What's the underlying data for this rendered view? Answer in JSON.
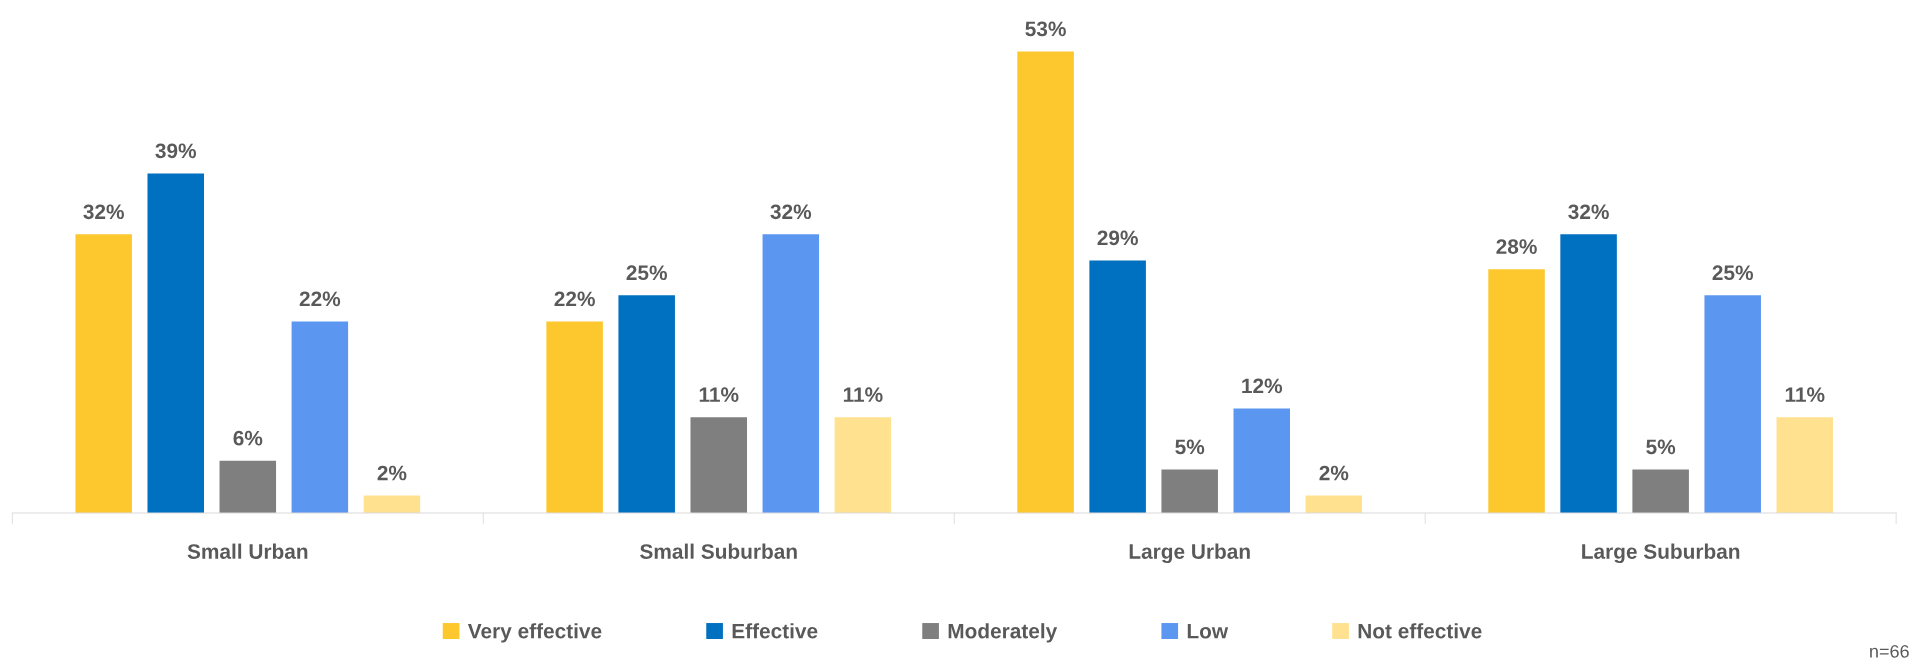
{
  "chart_data": {
    "type": "bar",
    "categories": [
      "Small Urban",
      "Small Suburban",
      "Large Urban",
      "Large Suburban"
    ],
    "series": [
      {
        "name": "Very effective",
        "color": "#fdc72e",
        "values": [
          32,
          22,
          53,
          28
        ],
        "value_labels": [
          "32%",
          "22%",
          "53%",
          "28%"
        ]
      },
      {
        "name": "Effective",
        "color": "#0070c0",
        "values": [
          39,
          25,
          29,
          32
        ],
        "value_labels": [
          "39%",
          "25%",
          "29%",
          "32%"
        ]
      },
      {
        "name": "Moderately",
        "color": "#7f7f7f",
        "values": [
          6,
          11,
          5,
          5
        ],
        "value_labels": [
          "6%",
          "11%",
          "5%",
          "5%"
        ]
      },
      {
        "name": "Low",
        "color": "#5b97f0",
        "values": [
          22,
          32,
          12,
          25
        ],
        "value_labels": [
          "22%",
          "32%",
          "12%",
          "25%"
        ]
      },
      {
        "name": "Not effective",
        "color": "#ffe190",
        "values": [
          2,
          11,
          2,
          11
        ],
        "value_labels": [
          "2%",
          "11%",
          "2%",
          "11%"
        ]
      }
    ],
    "legend": "bottom",
    "grid": false,
    "tick_labels": "x",
    "annotations": [
      "n=66"
    ]
  }
}
